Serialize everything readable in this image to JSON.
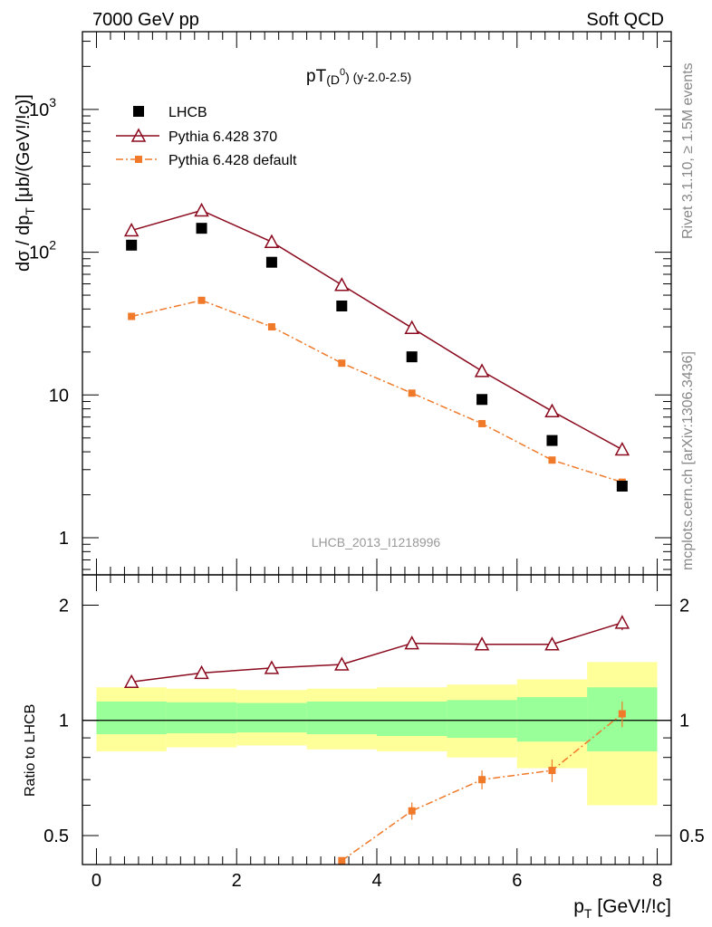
{
  "header": {
    "left": "7000 GeV pp",
    "right": "Soft QCD"
  },
  "side": {
    "rivet": "Rivet 3.1.10, ≥ 1.5M events",
    "source": "mcplots.cern.ch [arXiv:1306.3436]"
  },
  "chart_data": [
    {
      "type": "scatter",
      "title": "pT(D⁰) (y-2.0-2.5)",
      "title_main": "pT",
      "title_sub": "(D",
      "title_sup": "0",
      "title_tail": ") (y-2.0-2.5)",
      "ylabel": "dσ / dp_T [μb/(GeV!/!c)]",
      "ylabel_main": "dσ / dp",
      "ylabel_sub": "T",
      "ylabel_tail": " [μb/(GeV!/!c)]",
      "yscale": "log",
      "ylim": [
        0.55,
        3500
      ],
      "xlim": [
        -0.2,
        8.2
      ],
      "ytick_labels": [
        "1",
        "10",
        "10",
        "10"
      ],
      "ytick_exps": [
        "",
        "",
        "2",
        "3"
      ],
      "watermark": "LHCB_2013_I1218996",
      "legend_placement": "top-left",
      "series": [
        {
          "name": "LHCB",
          "x": [
            0.5,
            1.5,
            2.5,
            3.5,
            4.5,
            5.5,
            6.5,
            7.5
          ],
          "y": [
            112,
            147,
            85,
            42,
            18.5,
            9.3,
            4.8,
            2.3
          ],
          "color": "#000000"
        },
        {
          "name": "Pythia 6.428 370",
          "x": [
            0.5,
            1.5,
            2.5,
            3.5,
            4.5,
            5.5,
            6.5,
            7.5
          ],
          "y": [
            142,
            196,
            118,
            59,
            29.5,
            14.7,
            7.7,
            4.15
          ],
          "color": "#8b0a1e"
        },
        {
          "name": "Pythia 6.428 default",
          "x": [
            0.5,
            1.5,
            2.5,
            3.5,
            4.5,
            5.5,
            6.5,
            7.5
          ],
          "y": [
            35.5,
            46,
            30,
            16.7,
            10.3,
            6.3,
            3.5,
            2.45
          ],
          "color": "#f07a2a"
        }
      ]
    },
    {
      "type": "line",
      "ylabel": "Ratio to LHCB",
      "xlabel": "p_T [GeV!/!c]",
      "xlabel_main": "p",
      "xlabel_sub": "T",
      "xlabel_tail": " [GeV!/!c]",
      "yscale": "log",
      "ylim": [
        0.42,
        2.4
      ],
      "xlim": [
        -0.2,
        8.2
      ],
      "xtick_labels": [
        "0",
        "2",
        "4",
        "6",
        "8"
      ],
      "ytick_labels": [
        "0.5",
        "1",
        "2"
      ],
      "bands": [
        {
          "x0": 0,
          "x1": 1,
          "stat_lo": 0.92,
          "stat_hi": 1.12,
          "tot_lo": 0.83,
          "tot_hi": 1.22
        },
        {
          "x0": 1,
          "x1": 2,
          "stat_lo": 0.925,
          "stat_hi": 1.115,
          "tot_lo": 0.85,
          "tot_hi": 1.21
        },
        {
          "x0": 2,
          "x1": 3,
          "stat_lo": 0.93,
          "stat_hi": 1.11,
          "tot_lo": 0.86,
          "tot_hi": 1.2
        },
        {
          "x0": 3,
          "x1": 4,
          "stat_lo": 0.92,
          "stat_hi": 1.12,
          "tot_lo": 0.84,
          "tot_hi": 1.21
        },
        {
          "x0": 4,
          "x1": 5,
          "stat_lo": 0.91,
          "stat_hi": 1.12,
          "tot_lo": 0.83,
          "tot_hi": 1.22
        },
        {
          "x0": 5,
          "x1": 6,
          "stat_lo": 0.9,
          "stat_hi": 1.13,
          "tot_lo": 0.8,
          "tot_hi": 1.24
        },
        {
          "x0": 6,
          "x1": 7,
          "stat_lo": 0.88,
          "stat_hi": 1.15,
          "tot_lo": 0.75,
          "tot_hi": 1.28
        },
        {
          "x0": 7,
          "x1": 8,
          "stat_lo": 0.83,
          "stat_hi": 1.22,
          "tot_lo": 0.6,
          "tot_hi": 1.42
        }
      ],
      "series": [
        {
          "name": "Pythia 6.428 370",
          "x": [
            0.5,
            1.5,
            2.5,
            3.5,
            4.5,
            5.5,
            6.5,
            7.5
          ],
          "y": [
            1.26,
            1.33,
            1.37,
            1.4,
            1.59,
            1.58,
            1.58,
            1.8
          ],
          "err": [
            0,
            0,
            0,
            0,
            0.03,
            0.04,
            0.05,
            0.08
          ],
          "color": "#8b0a1e"
        },
        {
          "name": "Pythia 6.428 default",
          "x": [
            3.5,
            4.5,
            5.5,
            6.5,
            7.5
          ],
          "y": [
            0.43,
            0.58,
            0.7,
            0.74,
            1.04
          ],
          "err": [
            0,
            0.03,
            0.04,
            0.05,
            0.08
          ],
          "color": "#f07a2a"
        }
      ]
    }
  ]
}
